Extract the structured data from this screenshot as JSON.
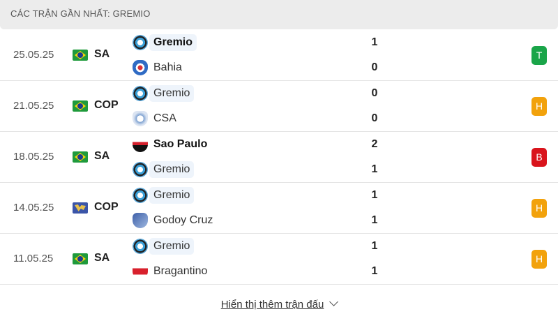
{
  "header": {
    "title": "CÁC TRẬN GẦN NHẤT: GREMIO"
  },
  "colors": {
    "T": "#1aa549",
    "H": "#f2a20c",
    "B": "#d9141c"
  },
  "matches": [
    {
      "date": "25.05.25",
      "flag": "brazil-flag-icon",
      "competition": "SA",
      "home": {
        "name": "Gremio",
        "logo": "gremio",
        "score": "1"
      },
      "away": {
        "name": "Bahia",
        "logo": "bahia",
        "score": "0"
      },
      "result": "T"
    },
    {
      "date": "21.05.25",
      "flag": "brazil-flag-icon",
      "competition": "COP",
      "home": {
        "name": "Gremio",
        "logo": "gremio",
        "score": "0"
      },
      "away": {
        "name": "CSA",
        "logo": "csa",
        "score": "0"
      },
      "result": "H"
    },
    {
      "date": "18.05.25",
      "flag": "brazil-flag-icon",
      "competition": "SA",
      "home": {
        "name": "Sao Paulo",
        "logo": "sao",
        "score": "2"
      },
      "away": {
        "name": "Gremio",
        "logo": "gremio",
        "score": "1"
      },
      "result": "B"
    },
    {
      "date": "14.05.25",
      "flag": "world-flag-icon",
      "competition": "COP",
      "home": {
        "name": "Gremio",
        "logo": "gremio",
        "score": "1"
      },
      "away": {
        "name": "Godoy Cruz",
        "logo": "godoy",
        "score": "1"
      },
      "result": "H"
    },
    {
      "date": "11.05.25",
      "flag": "brazil-flag-icon",
      "competition": "SA",
      "home": {
        "name": "Gremio",
        "logo": "gremio",
        "score": "1"
      },
      "away": {
        "name": "Bragantino",
        "logo": "brag",
        "score": "1"
      },
      "result": "H"
    }
  ],
  "footer": {
    "show_more": "Hiển thị thêm trận đấu"
  }
}
